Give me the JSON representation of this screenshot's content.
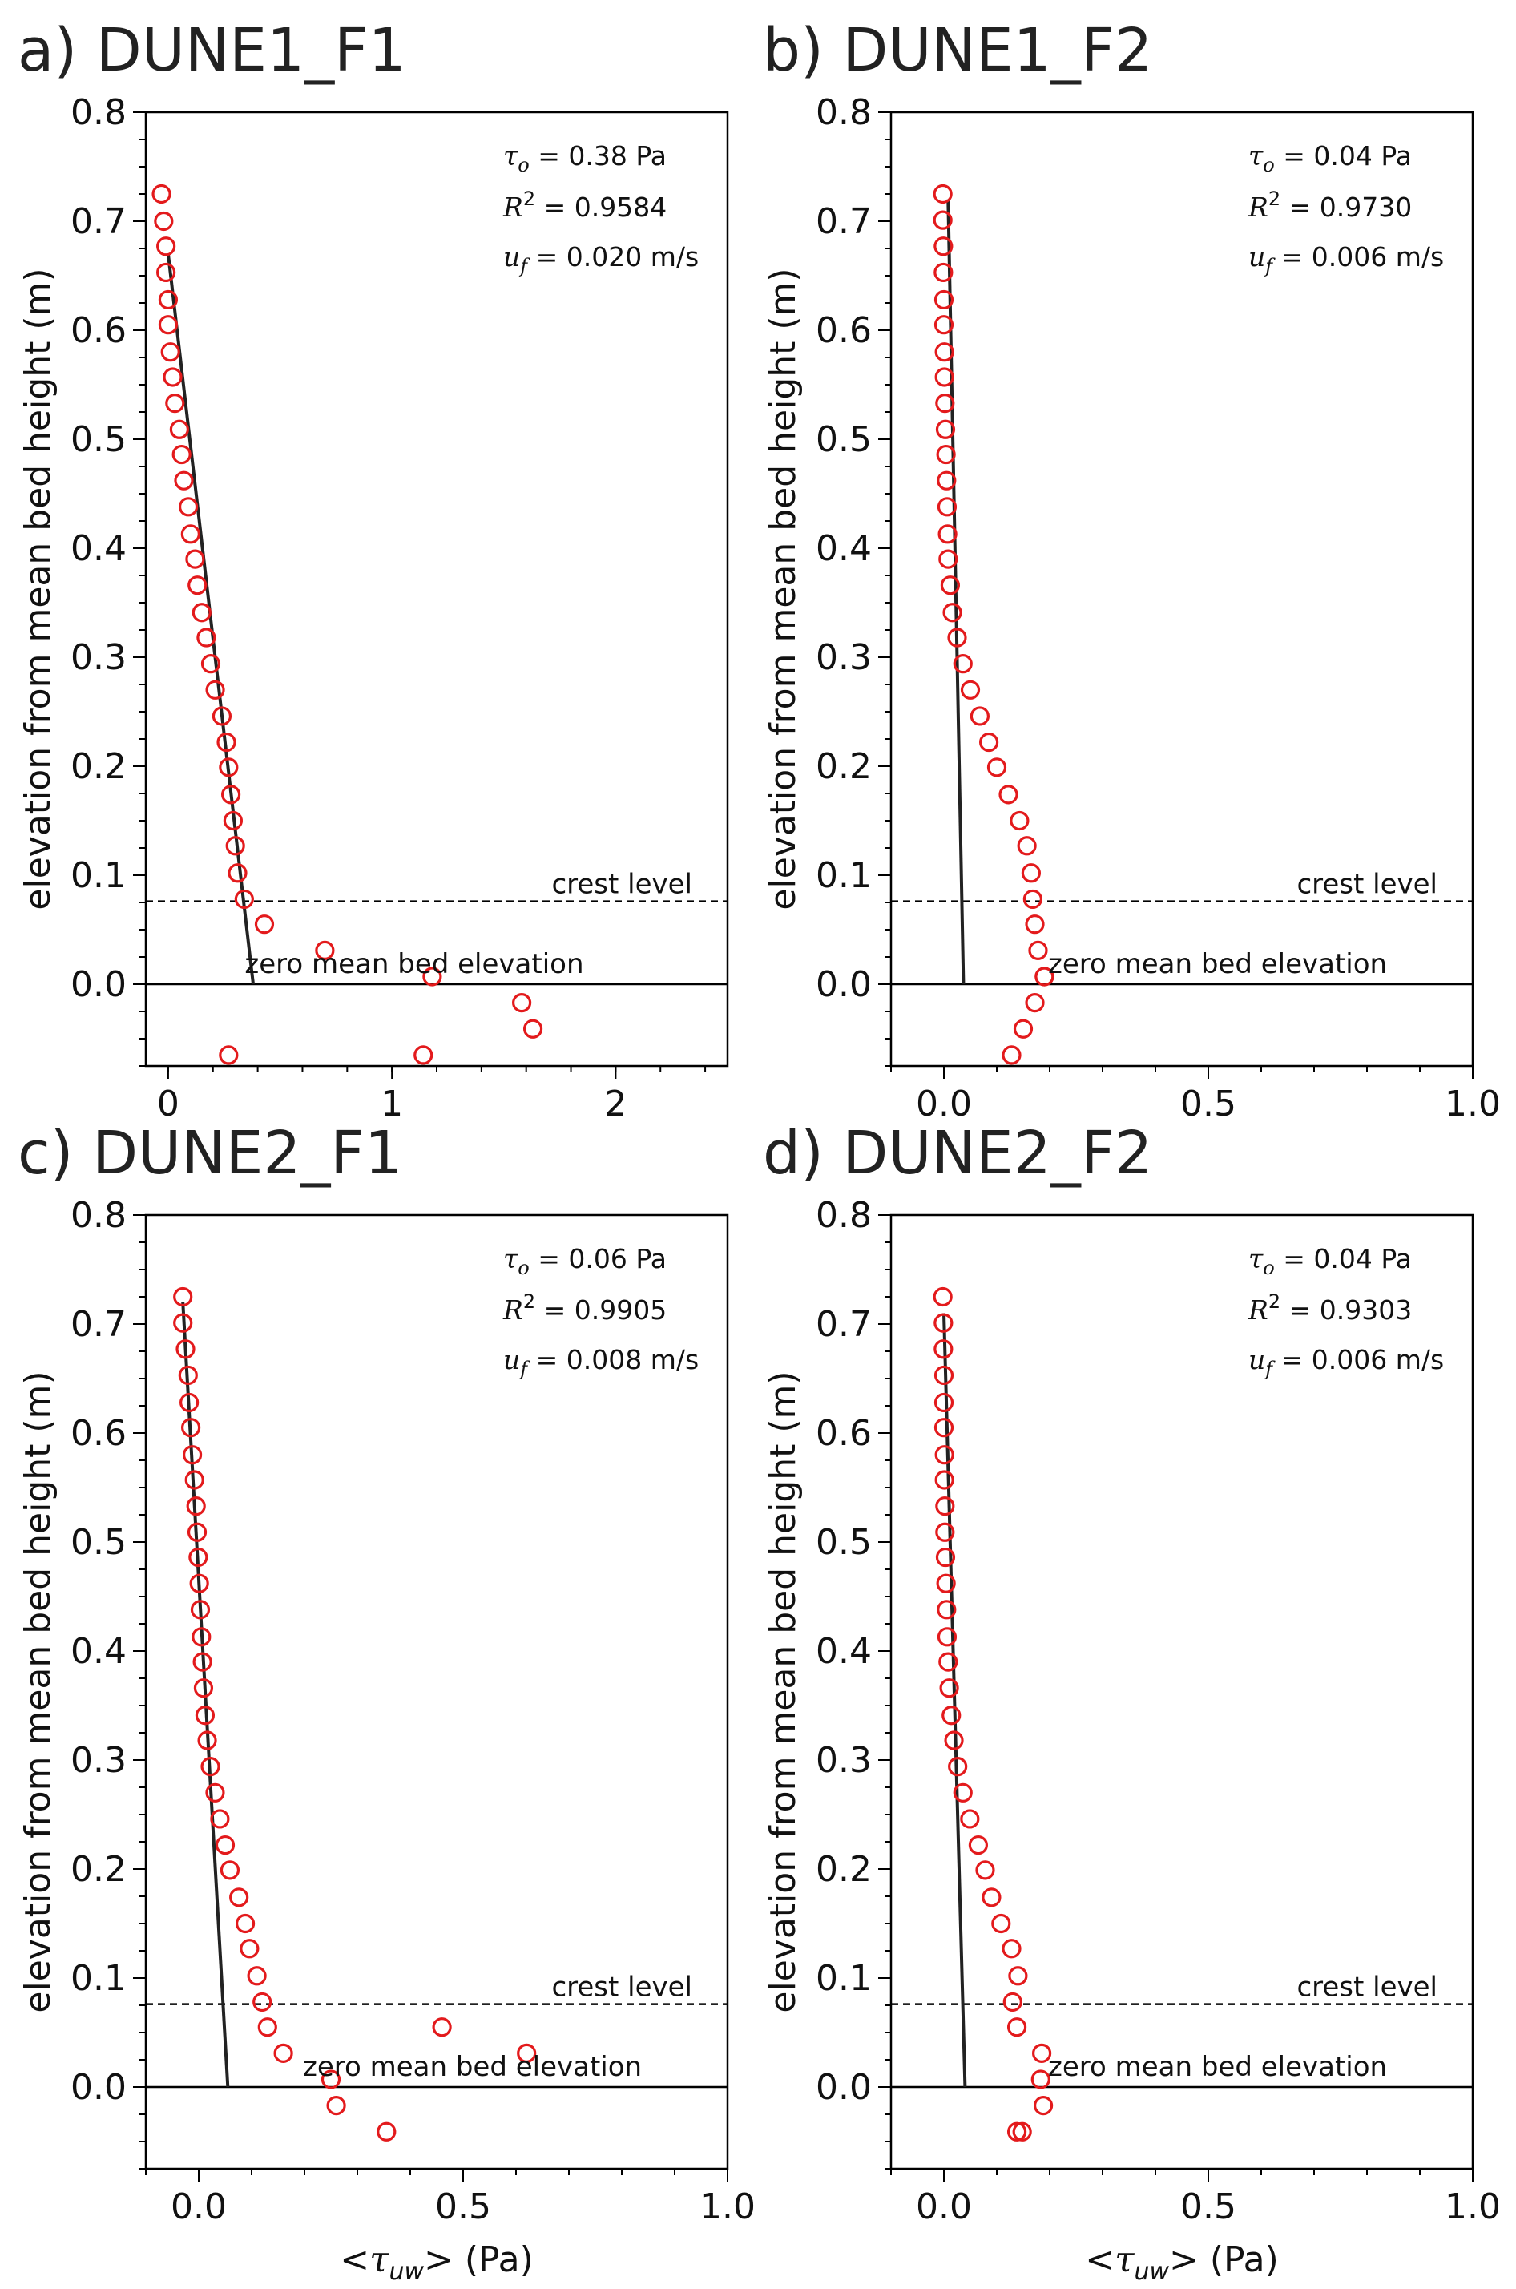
{
  "figure": {
    "ylabel": "elevation from mean bed height (m)",
    "xlabel": "<τ_uw> (Pa)",
    "crest_label": "crest level",
    "zero_label": "zero mean bed elevation"
  },
  "chart_data": [
    {
      "type": "scatter",
      "title": "a) DUNE1_F1",
      "xlabel": "",
      "ylabel": "elevation from mean bed height (m)",
      "xlim": [
        -0.1,
        2.5
      ],
      "ylim": [
        -0.075,
        0.8
      ],
      "xticks": [
        0,
        1,
        2
      ],
      "xtick_labels": [
        "0",
        "1",
        "2"
      ],
      "yticks": [
        0.0,
        0.1,
        0.2,
        0.3,
        0.4,
        0.5,
        0.6,
        0.7,
        0.8
      ],
      "ytick_labels": [
        "0.0",
        "0.1",
        "0.2",
        "0.3",
        "0.4",
        "0.5",
        "0.6",
        "0.7",
        "0.8"
      ],
      "stats": {
        "tau_label": "τ",
        "tau_sub": "o",
        "tau_value": "= 0.38 Pa",
        "r2_label": "R",
        "r2_value": "= 0.9584",
        "uf_label": "u",
        "uf_sub": "f",
        "uf_value": "= 0.020 m/s"
      },
      "crest_level": 0.076,
      "zero_level": 0.0,
      "fit_line": {
        "x": [
          0.38,
          0.0
        ],
        "y": [
          0.0,
          0.67
        ]
      },
      "series": [
        {
          "x": [
            -0.03,
            -0.02,
            -0.01,
            -0.01,
            0.0,
            0.0,
            0.01,
            0.02,
            0.03,
            0.05,
            0.06,
            0.07,
            0.09,
            0.1,
            0.12,
            0.13,
            0.15,
            0.17,
            0.19,
            0.21,
            0.24,
            0.26,
            0.27,
            0.28,
            0.29,
            0.3,
            0.31,
            0.34,
            0.43,
            0.7,
            1.18,
            1.58,
            1.63,
            1.14,
            0.27
          ],
          "y": [
            0.725,
            0.7,
            0.677,
            0.653,
            0.628,
            0.605,
            0.58,
            0.557,
            0.533,
            0.509,
            0.486,
            0.462,
            0.438,
            0.413,
            0.39,
            0.366,
            0.341,
            0.318,
            0.294,
            0.27,
            0.246,
            0.222,
            0.199,
            0.174,
            0.15,
            0.127,
            0.102,
            0.078,
            0.055,
            0.031,
            0.007,
            -0.017,
            -0.041,
            -0.065,
            -0.065
          ]
        }
      ]
    },
    {
      "type": "scatter",
      "title": "b) DUNE1_F2",
      "xlabel": "",
      "ylabel": "elevation from mean bed height (m)",
      "xlim": [
        -0.1,
        1.0
      ],
      "ylim": [
        -0.075,
        0.8
      ],
      "xticks": [
        0.0,
        0.5,
        1.0
      ],
      "xtick_labels": [
        "0.0",
        "0.5",
        "1.0"
      ],
      "yticks": [
        0.0,
        0.1,
        0.2,
        0.3,
        0.4,
        0.5,
        0.6,
        0.7,
        0.8
      ],
      "ytick_labels": [
        "0.0",
        "0.1",
        "0.2",
        "0.3",
        "0.4",
        "0.5",
        "0.6",
        "0.7",
        "0.8"
      ],
      "stats": {
        "tau_label": "τ",
        "tau_sub": "o",
        "tau_value": "= 0.04 Pa",
        "r2_label": "R",
        "r2_value": "= 0.9730",
        "uf_label": "u",
        "uf_sub": "f",
        "uf_value": "= 0.006 m/s"
      },
      "crest_level": 0.076,
      "zero_level": 0.0,
      "fit_line": {
        "x": [
          0.037,
          0.008
        ],
        "y": [
          0.0,
          0.72
        ]
      },
      "series": [
        {
          "x": [
            -0.002,
            -0.002,
            -0.001,
            -0.001,
            0.0,
            0.0,
            0.001,
            0.001,
            0.002,
            0.003,
            0.004,
            0.005,
            0.006,
            0.007,
            0.008,
            0.012,
            0.016,
            0.025,
            0.036,
            0.05,
            0.068,
            0.085,
            0.1,
            0.122,
            0.143,
            0.157,
            0.165,
            0.168,
            0.172,
            0.178,
            0.19,
            0.19,
            0.172,
            0.15,
            0.128
          ],
          "y": [
            0.725,
            0.701,
            0.677,
            0.653,
            0.628,
            0.605,
            0.58,
            0.557,
            0.533,
            0.509,
            0.486,
            0.462,
            0.438,
            0.413,
            0.39,
            0.366,
            0.341,
            0.318,
            0.294,
            0.27,
            0.246,
            0.222,
            0.199,
            0.174,
            0.15,
            0.127,
            0.102,
            0.078,
            0.055,
            0.031,
            0.007,
            0.007,
            -0.017,
            -0.041,
            -0.065
          ]
        }
      ]
    },
    {
      "type": "scatter",
      "title": "c) DUNE2_F1",
      "xlabel": "<τ_uw> (Pa)",
      "ylabel": "elevation from mean bed height (m)",
      "xlim": [
        -0.1,
        1.0
      ],
      "ylim": [
        -0.075,
        0.8
      ],
      "xticks": [
        0.0,
        0.5,
        1.0
      ],
      "xtick_labels": [
        "0.0",
        "0.5",
        "1.0"
      ],
      "yticks": [
        0.0,
        0.1,
        0.2,
        0.3,
        0.4,
        0.5,
        0.6,
        0.7,
        0.8
      ],
      "ytick_labels": [
        "0.0",
        "0.1",
        "0.2",
        "0.3",
        "0.4",
        "0.5",
        "0.6",
        "0.7",
        "0.8"
      ],
      "stats": {
        "tau_label": "τ",
        "tau_sub": "o",
        "tau_value": "= 0.06 Pa",
        "r2_label": "R",
        "r2_value": "= 0.9905",
        "uf_label": "u",
        "uf_sub": "f",
        "uf_value": "= 0.008 m/s"
      },
      "crest_level": 0.076,
      "zero_level": 0.0,
      "fit_line": {
        "x": [
          0.055,
          -0.03
        ],
        "y": [
          0.0,
          0.72
        ]
      },
      "series": [
        {
          "x": [
            -0.03,
            -0.03,
            -0.025,
            -0.02,
            -0.018,
            -0.015,
            -0.012,
            -0.008,
            -0.005,
            -0.003,
            -0.001,
            0.001,
            0.003,
            0.005,
            0.007,
            0.009,
            0.012,
            0.016,
            0.022,
            0.031,
            0.04,
            0.05,
            0.059,
            0.076,
            0.088,
            0.096,
            0.11,
            0.12,
            0.13,
            0.16,
            0.25,
            0.26,
            0.355,
            0.46,
            0.62
          ],
          "y": [
            0.725,
            0.701,
            0.677,
            0.653,
            0.628,
            0.605,
            0.58,
            0.557,
            0.533,
            0.509,
            0.486,
            0.462,
            0.438,
            0.413,
            0.39,
            0.366,
            0.341,
            0.318,
            0.294,
            0.27,
            0.246,
            0.222,
            0.199,
            0.174,
            0.15,
            0.127,
            0.102,
            0.078,
            0.055,
            0.031,
            0.007,
            -0.017,
            -0.041,
            0.055,
            0.031
          ]
        }
      ]
    },
    {
      "type": "scatter",
      "title": "d) DUNE2_F2",
      "xlabel": "<τ_uw> (Pa)",
      "ylabel": "elevation from mean bed height (m)",
      "xlim": [
        -0.1,
        1.0
      ],
      "ylim": [
        -0.075,
        0.8
      ],
      "xticks": [
        0.0,
        0.5,
        1.0
      ],
      "xtick_labels": [
        "0.0",
        "0.5",
        "1.0"
      ],
      "yticks": [
        0.0,
        0.1,
        0.2,
        0.3,
        0.4,
        0.5,
        0.6,
        0.7,
        0.8
      ],
      "ytick_labels": [
        "0.0",
        "0.1",
        "0.2",
        "0.3",
        "0.4",
        "0.5",
        "0.6",
        "0.7",
        "0.8"
      ],
      "stats": {
        "tau_label": "τ",
        "tau_sub": "o",
        "tau_value": "= 0.04 Pa",
        "r2_label": "R",
        "r2_value": "= 0.9303",
        "uf_label": "u",
        "uf_sub": "f",
        "uf_value": "= 0.006 m/s"
      },
      "crest_level": 0.076,
      "zero_level": 0.0,
      "fit_line": {
        "x": [
          0.04,
          0.0
        ],
        "y": [
          0.0,
          0.71
        ]
      },
      "series": [
        {
          "x": [
            -0.002,
            -0.001,
            -0.001,
            0.0,
            0.0,
            0.0,
            0.001,
            0.001,
            0.002,
            0.002,
            0.003,
            0.004,
            0.005,
            0.006,
            0.008,
            0.01,
            0.014,
            0.019,
            0.026,
            0.036,
            0.049,
            0.065,
            0.078,
            0.09,
            0.108,
            0.128,
            0.14,
            0.13,
            0.138,
            0.185,
            0.183,
            0.188,
            0.148,
            0.138
          ],
          "y": [
            0.725,
            0.701,
            0.677,
            0.653,
            0.628,
            0.605,
            0.58,
            0.557,
            0.533,
            0.509,
            0.486,
            0.462,
            0.438,
            0.413,
            0.39,
            0.366,
            0.341,
            0.318,
            0.294,
            0.27,
            0.246,
            0.222,
            0.199,
            0.174,
            0.15,
            0.127,
            0.102,
            0.078,
            0.055,
            0.031,
            0.007,
            -0.017,
            -0.041,
            -0.041
          ]
        }
      ]
    }
  ]
}
